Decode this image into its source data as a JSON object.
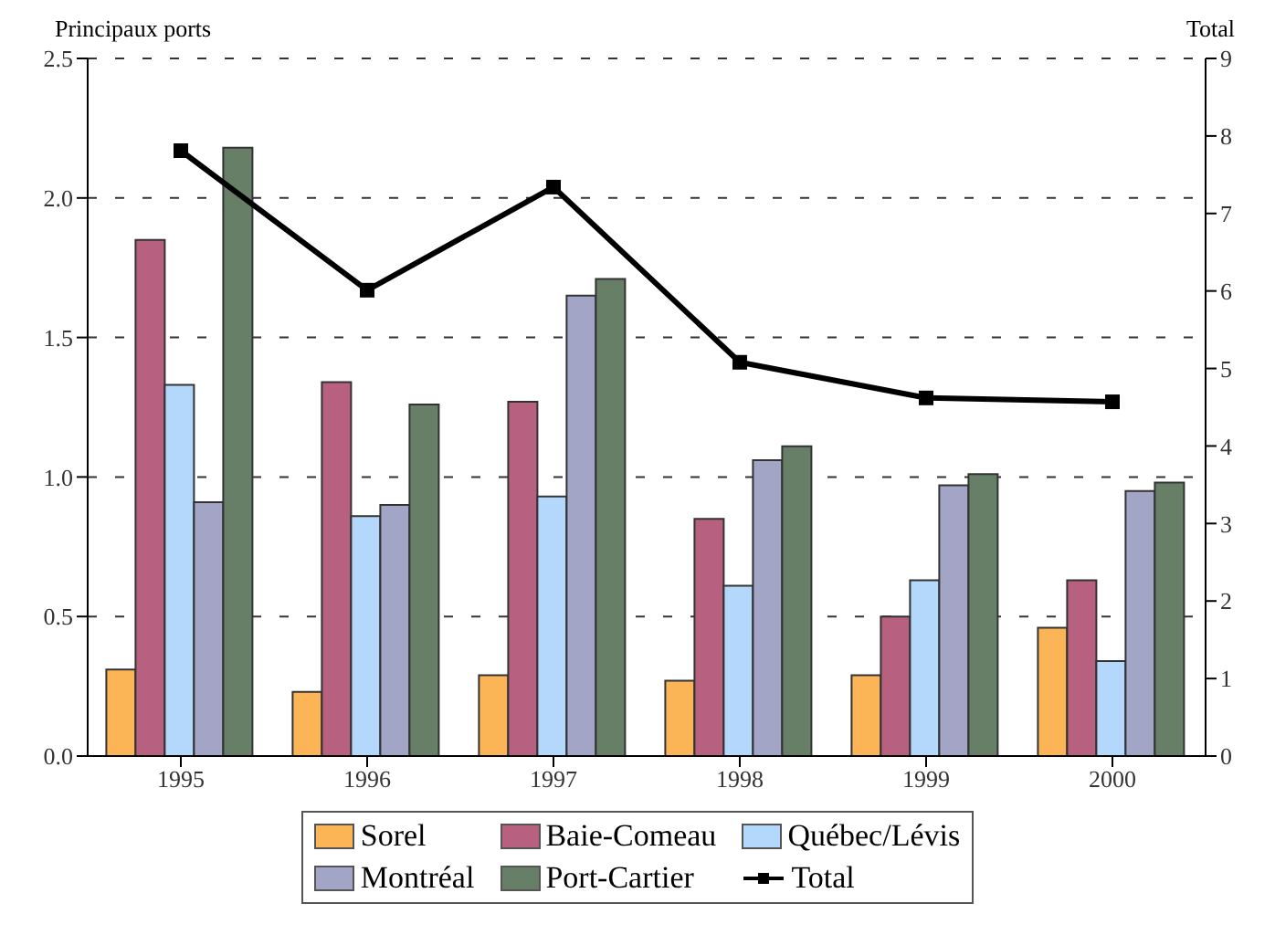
{
  "chart_data": {
    "type": "bar",
    "ylabel": "Principaux ports",
    "y2label": "Total",
    "categories": [
      "1995",
      "1996",
      "1997",
      "1998",
      "1999",
      "2000"
    ],
    "series": [
      {
        "name": "Sorel",
        "color": "#fbb456",
        "values": [
          0.31,
          0.23,
          0.29,
          0.27,
          0.29,
          0.46
        ]
      },
      {
        "name": "Baie-Comeau",
        "color": "#b8607f",
        "values": [
          1.85,
          1.34,
          1.27,
          0.85,
          0.5,
          0.63
        ]
      },
      {
        "name": "Québec/Lévis",
        "color": "#b4d8fb",
        "values": [
          1.33,
          0.86,
          0.93,
          0.61,
          0.63,
          0.34
        ]
      },
      {
        "name": "Montréal",
        "color": "#a3a5c6",
        "values": [
          0.91,
          0.9,
          1.65,
          1.06,
          0.97,
          0.95
        ]
      },
      {
        "name": "Port-Cartier",
        "color": "#667f66",
        "values": [
          2.18,
          1.26,
          1.71,
          1.11,
          1.01,
          0.98
        ]
      },
      {
        "name": "Total",
        "type": "line",
        "axis": "y2",
        "color": "#000000",
        "marker": "square",
        "values": [
          7.81,
          6.01,
          7.34,
          5.08,
          4.62,
          4.57
        ]
      }
    ],
    "ylim": [
      0,
      2.5
    ],
    "yticks": [
      {
        "value": 0,
        "label": "0.0"
      },
      {
        "value": 0.5,
        "label": "0.5"
      },
      {
        "value": 1,
        "label": "1.0"
      },
      {
        "value": 1.5,
        "label": "1.5"
      },
      {
        "value": 2,
        "label": "2.0"
      },
      {
        "value": 2.5,
        "label": "2.5"
      }
    ],
    "y2lim": [
      0,
      9
    ],
    "y2ticks": [
      0,
      1,
      2,
      3,
      4,
      5,
      6,
      7,
      8,
      9
    ],
    "grid": "y",
    "legend": "bottom"
  }
}
